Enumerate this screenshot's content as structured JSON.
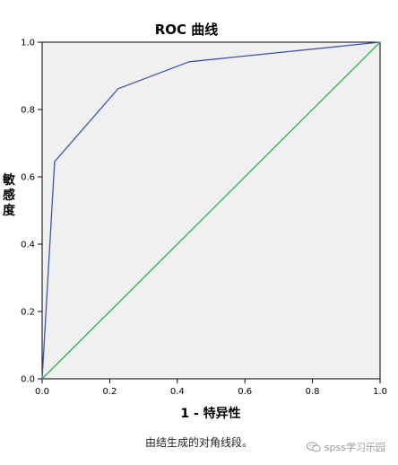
{
  "chart_data": {
    "type": "line",
    "title": "ROC 曲线",
    "xlabel": "1 - 特异性",
    "ylabel": "敏感度",
    "xlim": [
      0.0,
      1.0
    ],
    "ylim": [
      0.0,
      1.0
    ],
    "xticks": [
      "0.0",
      "0.2",
      "0.4",
      "0.6",
      "0.8",
      "1.0"
    ],
    "yticks": [
      "0.0",
      "0.2",
      "0.4",
      "0.6",
      "0.8",
      "1.0"
    ],
    "grid": false,
    "background_color": "#f0f0f0",
    "series": [
      {
        "color": "#3a56b0",
        "x": [
          0.0,
          0.037,
          0.225,
          0.435,
          1.0
        ],
        "y": [
          0.0,
          0.645,
          0.862,
          0.942,
          1.0
        ]
      },
      {
        "color": "#2db34a",
        "x": [
          0.0,
          1.0
        ],
        "y": [
          0.0,
          1.0
        ]
      }
    ]
  },
  "footnote": "由结生成的对角线段。",
  "watermark": {
    "text": "spss学习乐园",
    "icon": "wechat-icon"
  }
}
